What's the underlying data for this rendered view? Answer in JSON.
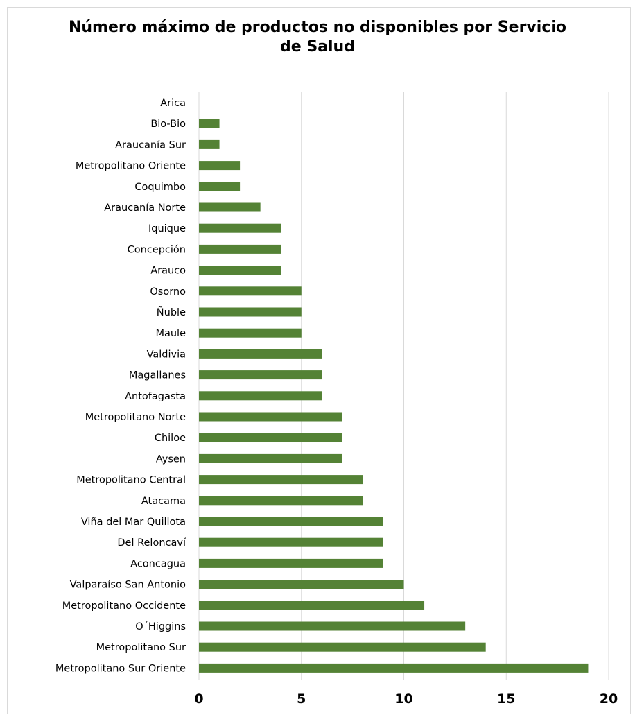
{
  "chart_data": {
    "type": "bar",
    "orientation": "horizontal",
    "title": "Número máximo de productos no disponibles por Servicio de Salud",
    "categories": [
      "Arica",
      "Bio-Bio",
      "Araucanía Sur",
      "Metropolitano Oriente",
      "Coquimbo",
      "Araucanía Norte",
      "Iquique",
      "Concepción",
      "Arauco",
      "Osorno",
      "Ñuble",
      "Maule",
      "Valdivia",
      "Magallanes",
      "Antofagasta",
      "Metropolitano Norte",
      "Chiloe",
      "Aysen",
      "Metropolitano Central",
      "Atacama",
      "Viña del Mar Quillota",
      "Del Reloncaví",
      "Aconcagua",
      "Valparaíso San Antonio",
      "Metropolitano Occidente",
      "O´Higgins",
      "Metropolitano Sur",
      "Metropolitano Sur Oriente"
    ],
    "values": [
      0,
      1,
      1,
      2,
      2,
      3,
      4,
      4,
      4,
      5,
      5,
      5,
      6,
      6,
      6,
      7,
      7,
      7,
      8,
      8,
      9,
      9,
      9,
      10,
      11,
      13,
      14,
      19
    ],
    "xlim": [
      0,
      20
    ],
    "x_ticks": [
      "0",
      "5",
      "10",
      "15",
      "20"
    ],
    "grid": "vertical",
    "legend": "none",
    "bar_color": "#548235",
    "grid_color": "#d9d9d9"
  }
}
